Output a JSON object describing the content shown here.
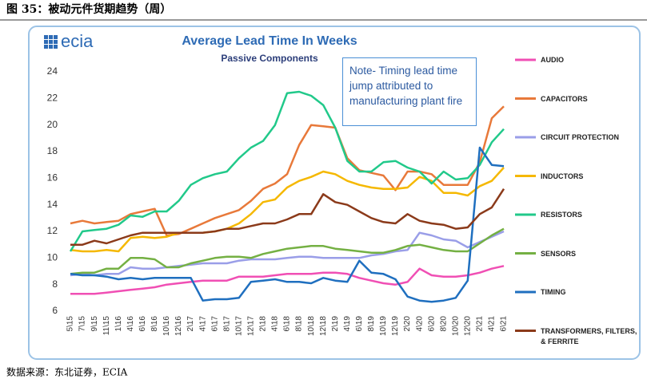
{
  "header": "图 35：被动元件货期趋势（周）",
  "source": "数据来源：东北证券，ECIA",
  "chart_data": {
    "type": "line",
    "logo": "ecia",
    "title": "Average Lead Time In Weeks",
    "subtitle": "Passive Components",
    "annotation": "Note- Timing lead time jump attributed to manufacturing plant fire",
    "categories": [
      "5\\15",
      "7\\15",
      "9\\15",
      "11\\15",
      "1\\16",
      "4\\16",
      "6\\16",
      "8\\16",
      "10\\16",
      "12\\16",
      "2\\17",
      "4\\17",
      "6\\17",
      "8\\17",
      "10\\17",
      "12\\17",
      "2\\18",
      "4\\18",
      "6\\18",
      "8\\18",
      "10\\18",
      "12\\18",
      "2\\19",
      "4\\19",
      "6\\19",
      "8\\19",
      "10\\19",
      "12\\19",
      "2\\20",
      "4\\20",
      "6\\20",
      "8\\20",
      "10\\20",
      "12\\20",
      "2\\21",
      "4\\21",
      "6\\21"
    ],
    "ylim": [
      6,
      24
    ],
    "yticks": [
      6,
      8,
      10,
      12,
      14,
      16,
      18,
      20,
      22,
      24
    ],
    "grid": false,
    "series": [
      {
        "name": "AUDIO",
        "color": "#f04fb4",
        "values": [
          7.3,
          7.3,
          7.3,
          7.4,
          7.5,
          7.6,
          7.7,
          7.8,
          8.0,
          8.1,
          8.2,
          8.3,
          8.3,
          8.3,
          8.6,
          8.6,
          8.6,
          8.7,
          8.8,
          8.8,
          8.8,
          8.9,
          8.9,
          8.8,
          8.5,
          8.3,
          8.1,
          8.0,
          8.2,
          9.2,
          8.7,
          8.6,
          8.6,
          8.7,
          8.9,
          9.2,
          9.4
        ]
      },
      {
        "name": "CAPACITORS",
        "color": "#e8793a",
        "values": [
          12.6,
          12.8,
          12.6,
          12.7,
          12.8,
          13.3,
          13.5,
          13.7,
          11.7,
          11.8,
          12.2,
          12.6,
          13.0,
          13.3,
          13.6,
          14.3,
          15.2,
          15.6,
          16.3,
          18.5,
          20.0,
          19.9,
          19.8,
          17.5,
          16.6,
          16.4,
          16.2,
          15.1,
          16.5,
          16.5,
          16.3,
          15.5,
          15.5,
          15.5,
          17.2,
          20.5,
          21.4
        ]
      },
      {
        "name": "CIRCUIT PROTECTION",
        "color": "#9a9ee8",
        "values": [
          8.7,
          8.8,
          8.7,
          8.8,
          8.8,
          9.3,
          9.2,
          9.2,
          9.3,
          9.4,
          9.5,
          9.6,
          9.6,
          9.6,
          9.8,
          9.9,
          9.9,
          9.9,
          10.0,
          10.1,
          10.1,
          10.0,
          10.0,
          10.0,
          10.0,
          10.2,
          10.3,
          10.5,
          10.6,
          11.9,
          11.7,
          11.4,
          11.3,
          10.8,
          11.2,
          11.6,
          12.0
        ]
      },
      {
        "name": "INDUCTORS",
        "color": "#f5b800",
        "values": [
          10.6,
          10.5,
          10.5,
          10.6,
          10.5,
          11.5,
          11.6,
          11.5,
          11.6,
          11.9,
          11.9,
          11.9,
          12.0,
          12.2,
          12.6,
          13.3,
          14.2,
          14.4,
          15.3,
          15.8,
          16.1,
          16.5,
          16.3,
          15.8,
          15.5,
          15.3,
          15.2,
          15.2,
          15.3,
          16.1,
          15.8,
          14.9,
          14.9,
          14.7,
          15.4,
          15.8,
          16.8
        ]
      },
      {
        "name": "RESISTORS",
        "color": "#21c98a",
        "values": [
          10.5,
          12.0,
          12.1,
          12.2,
          12.5,
          13.2,
          13.1,
          13.5,
          13.5,
          14.3,
          15.5,
          16.0,
          16.3,
          16.5,
          17.5,
          18.3,
          18.8,
          20.0,
          22.4,
          22.5,
          22.2,
          21.5,
          19.8,
          17.3,
          16.5,
          16.5,
          17.2,
          17.3,
          16.8,
          16.5,
          15.6,
          16.5,
          15.9,
          16.0,
          17.0,
          18.7,
          19.7
        ]
      },
      {
        "name": "SENSORS",
        "color": "#74b043",
        "values": [
          8.8,
          8.9,
          8.9,
          9.2,
          9.2,
          10.0,
          10.0,
          9.9,
          9.3,
          9.3,
          9.6,
          9.8,
          10.0,
          10.1,
          10.1,
          10.0,
          10.3,
          10.5,
          10.7,
          10.8,
          10.9,
          10.9,
          10.7,
          10.6,
          10.5,
          10.4,
          10.4,
          10.6,
          10.9,
          11.0,
          10.8,
          10.6,
          10.5,
          10.5,
          11.1,
          11.7,
          12.2
        ]
      },
      {
        "name": "TIMING",
        "color": "#1f6fbf",
        "values": [
          8.8,
          8.7,
          8.7,
          8.6,
          8.4,
          8.5,
          8.4,
          8.5,
          8.5,
          8.5,
          8.5,
          6.8,
          6.9,
          6.9,
          7.0,
          8.2,
          8.3,
          8.4,
          8.2,
          8.2,
          8.1,
          8.5,
          8.3,
          8.2,
          9.8,
          8.9,
          8.8,
          8.4,
          7.1,
          6.8,
          6.7,
          6.8,
          7.0,
          8.3,
          18.3,
          17.0,
          16.9
        ]
      },
      {
        "name": "TRANSFORMERS, FILTERS, & FERRITE",
        "color": "#8b3a1a",
        "values": [
          11.0,
          11.0,
          11.3,
          11.1,
          11.4,
          11.7,
          11.9,
          11.9,
          11.9,
          11.9,
          11.9,
          11.9,
          12.0,
          12.2,
          12.2,
          12.4,
          12.6,
          12.6,
          12.9,
          13.3,
          13.3,
          14.8,
          14.2,
          14.0,
          13.5,
          13.0,
          12.7,
          12.6,
          13.3,
          12.8,
          12.6,
          12.5,
          12.2,
          12.3,
          13.3,
          13.8,
          15.2
        ]
      }
    ]
  }
}
